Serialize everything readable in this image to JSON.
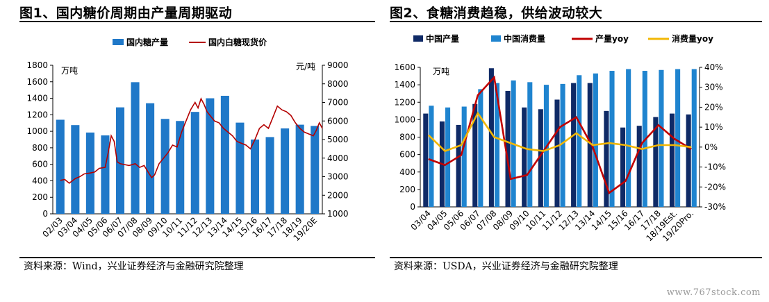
{
  "page": {
    "watermark": "www.767stock.com"
  },
  "charts": [
    {
      "title": "图1、国内糖价周期由产量周期驱动",
      "source": "资料来源：Wind，兴业证券经济与金融研究院整理",
      "chart_data": {
        "type": "bar",
        "categories": [
          "02/03",
          "03/04",
          "04/05",
          "05/06",
          "06/07",
          "07/08",
          "08/09",
          "09/10",
          "10/11",
          "11/12",
          "12/13",
          "13/14",
          "14/15",
          "15/16",
          "16/17",
          "17/18",
          "18/19",
          "19/20E"
        ],
        "left_unit": "万吨",
        "right_unit": "元/吨",
        "ylim": [
          0,
          1800
        ],
        "yticks": [
          0,
          200,
          400,
          600,
          800,
          1000,
          1200,
          1400,
          1600,
          1800
        ],
        "y2lim": [
          1000,
          9000
        ],
        "y2ticks": [
          1000,
          2000,
          3000,
          4000,
          5000,
          6000,
          7000,
          8000,
          9000
        ],
        "bar_color": "#1f78c8",
        "line_color": "#b40000",
        "series": [
          {
            "name": "国内糖产量",
            "kind": "bar",
            "values": [
              1140,
              1075,
              985,
              950,
              1290,
              1595,
              1340,
              1150,
              1125,
              1235,
              1400,
              1430,
              1105,
              900,
              930,
              1035,
              1080,
              1065
            ]
          },
          {
            "name": "国内白糖现货价",
            "kind": "line",
            "axis": "right",
            "points": [
              [
                0,
                2800
              ],
              [
                0.3,
                2850
              ],
              [
                0.6,
                2650
              ],
              [
                1.0,
                2900
              ],
              [
                1.3,
                3000
              ],
              [
                1.6,
                3150
              ],
              [
                2.0,
                3200
              ],
              [
                2.3,
                3250
              ],
              [
                2.6,
                3450
              ],
              [
                3.0,
                3500
              ],
              [
                3.2,
                4300
              ],
              [
                3.4,
                5200
              ],
              [
                3.6,
                4900
              ],
              [
                3.8,
                3800
              ],
              [
                4.0,
                3700
              ],
              [
                4.3,
                3650
              ],
              [
                4.6,
                3600
              ],
              [
                5.0,
                3700
              ],
              [
                5.3,
                3500
              ],
              [
                5.6,
                3600
              ],
              [
                5.9,
                3200
              ],
              [
                6.1,
                2950
              ],
              [
                6.3,
                3100
              ],
              [
                6.6,
                3700
              ],
              [
                6.9,
                4000
              ],
              [
                7.2,
                4300
              ],
              [
                7.5,
                4700
              ],
              [
                7.8,
                4600
              ],
              [
                8.1,
                5400
              ],
              [
                8.4,
                6000
              ],
              [
                8.7,
                6600
              ],
              [
                9.0,
                7000
              ],
              [
                9.2,
                6700
              ],
              [
                9.4,
                7200
              ],
              [
                9.6,
                6900
              ],
              [
                9.8,
                6500
              ],
              [
                10.0,
                6300
              ],
              [
                10.3,
                6000
              ],
              [
                10.6,
                5900
              ],
              [
                10.9,
                5600
              ],
              [
                11.2,
                5400
              ],
              [
                11.5,
                5200
              ],
              [
                11.8,
                4900
              ],
              [
                12.1,
                4800
              ],
              [
                12.4,
                4700
              ],
              [
                12.7,
                4500
              ],
              [
                13.0,
                5000
              ],
              [
                13.3,
                5600
              ],
              [
                13.6,
                5800
              ],
              [
                13.9,
                5600
              ],
              [
                14.2,
                6200
              ],
              [
                14.5,
                6800
              ],
              [
                14.8,
                6600
              ],
              [
                15.1,
                6500
              ],
              [
                15.4,
                6300
              ],
              [
                15.7,
                5900
              ],
              [
                16.0,
                5600
              ],
              [
                16.3,
                5400
              ],
              [
                16.6,
                5300
              ],
              [
                16.9,
                5200
              ],
              [
                17.1,
                5500
              ],
              [
                17.3,
                5900
              ],
              [
                17.5,
                5600
              ]
            ]
          }
        ]
      }
    },
    {
      "title": "图2、食糖消费趋稳，供给波动较大",
      "source": "资料来源：USDA，兴业证券经济与金融研究院整理",
      "chart_data": {
        "type": "bar",
        "categories": [
          "03/04",
          "04/05",
          "05/06",
          "06/07",
          "07/08",
          "08/09",
          "09/10",
          "10/11",
          "11/12",
          "12/13",
          "13/14",
          "14/15",
          "15/16",
          "16/17",
          "17/18",
          "18/19Est.",
          "19/20Pro."
        ],
        "left_unit": "万吨",
        "ylim": [
          0,
          1600
        ],
        "yticks": [
          0,
          200,
          400,
          600,
          800,
          1000,
          1200,
          1400,
          1600
        ],
        "y2lim": [
          -30,
          40
        ],
        "y2ticks": [
          "-30%",
          "-20%",
          "-10%",
          "0%",
          "10%",
          "20%",
          "30%",
          "40%"
        ],
        "series": [
          {
            "name": "中国产量",
            "kind": "bar",
            "color": "#0f2a66",
            "values": [
              1070,
              980,
              940,
              1180,
              1590,
              1330,
              1140,
              1120,
              1230,
              1420,
              1420,
              1100,
              910,
              930,
              1030,
              1070,
              1060
            ]
          },
          {
            "name": "中国消费量",
            "kind": "bar",
            "color": "#1f84cf",
            "values": [
              1160,
              1140,
              1150,
              1350,
              1420,
              1450,
              1430,
              1400,
              1410,
              1510,
              1530,
              1560,
              1580,
              1560,
              1570,
              1580,
              1580
            ]
          },
          {
            "name": "产量yoy",
            "kind": "line",
            "axis": "right",
            "color": "#c00000",
            "values": [
              -6,
              -9,
              -4,
              26,
              35,
              -16,
              -14,
              -2,
              10,
              15,
              0,
              -23,
              -17,
              2,
              11,
              4,
              -1
            ]
          },
          {
            "name": "消费量yoy",
            "kind": "line",
            "axis": "right",
            "color": "#f2b705",
            "values": [
              6,
              -2,
              1,
              17,
              5,
              2,
              -1,
              -2,
              1,
              7,
              1,
              2,
              1,
              -1,
              1,
              1,
              0
            ]
          }
        ]
      }
    }
  ]
}
